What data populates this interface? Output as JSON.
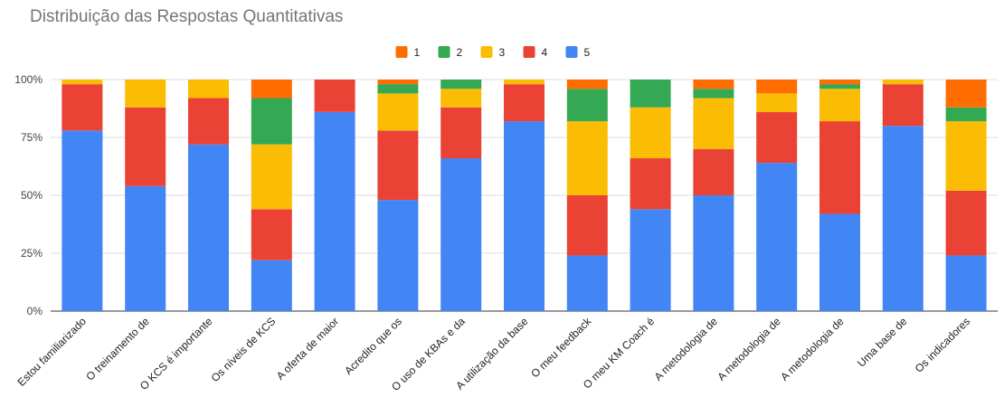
{
  "chart_data": {
    "type": "bar",
    "stacked": "percent",
    "title": "Distribuição das Respostas Quantitativas",
    "xlabel": "",
    "ylabel": "",
    "ylim": [
      0,
      100
    ],
    "y_ticks": [
      "0%",
      "25%",
      "50%",
      "75%",
      "100%"
    ],
    "grid": true,
    "legend_position": "top",
    "categories": [
      "Estou familiarizado",
      "O treinamento de",
      "O KCS é importante",
      "Os níveis de KCS",
      "A oferta de maior",
      "Acredito que os",
      "O uso de KBAs e da",
      "A utilização da base",
      "O meu feedback",
      "O meu KM Coach é",
      "A metodologia de",
      "A metodologia de",
      "A metodologia de",
      "Uma base de",
      "Os indicadores"
    ],
    "series": [
      {
        "name": "5",
        "color": "#4285F4",
        "values": [
          78,
          54,
          72,
          22,
          86,
          48,
          66,
          82,
          24,
          44,
          50,
          64,
          42,
          80,
          24
        ]
      },
      {
        "name": "4",
        "color": "#EA4335",
        "values": [
          20,
          34,
          20,
          22,
          14,
          30,
          22,
          16,
          26,
          22,
          20,
          22,
          40,
          18,
          28
        ]
      },
      {
        "name": "3",
        "color": "#FBBC04",
        "values": [
          2,
          12,
          8,
          28,
          0,
          16,
          8,
          2,
          32,
          22,
          22,
          8,
          14,
          2,
          30
        ]
      },
      {
        "name": "2",
        "color": "#34A853",
        "values": [
          0,
          0,
          0,
          20,
          0,
          4,
          4,
          0,
          14,
          12,
          4,
          0,
          2,
          0,
          6
        ]
      },
      {
        "name": "1",
        "color": "#FF6D01",
        "values": [
          0,
          0,
          0,
          8,
          0,
          2,
          0,
          0,
          4,
          0,
          4,
          6,
          2,
          0,
          12
        ]
      }
    ],
    "legend_order": [
      "1",
      "2",
      "3",
      "4",
      "5"
    ]
  }
}
